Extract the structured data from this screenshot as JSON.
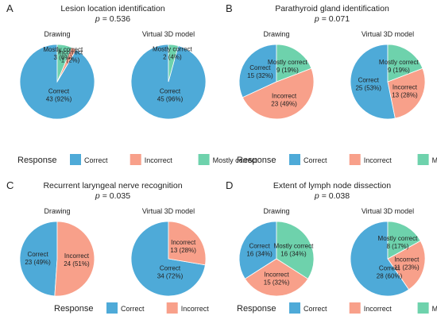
{
  "colors": {
    "Correct": "#4eaad8",
    "Incorrect": "#f8a08a",
    "Mostly correct": "#6ed2ac"
  },
  "legend_title": "Response",
  "chart_data": [
    {
      "type": "pie",
      "panel_label": "A",
      "title": "Lesion location identification",
      "p_prefix": "p",
      "p_value": "= 0.536",
      "legend": [
        "Correct",
        "Incorrect",
        "Mostly correct"
      ],
      "pies": [
        {
          "label": "Drawing",
          "slices": [
            {
              "category": "Correct",
              "value": 43,
              "text_line1": "Correct",
              "text_line2": "43 (92%)"
            },
            {
              "category": "Incorrect",
              "value": 1,
              "text_line1": "Incorrect",
              "text_line2": "1 (2%)"
            },
            {
              "category": "Mostly correct",
              "value": 3,
              "text_line1": "Mostly correct",
              "text_line2": "3 (6%)"
            }
          ]
        },
        {
          "label": "Virtual 3D model",
          "slices": [
            {
              "category": "Correct",
              "value": 45,
              "text_line1": "Correct",
              "text_line2": "45 (96%)"
            },
            {
              "category": "Mostly correct",
              "value": 2,
              "text_line1": "Mostly correct",
              "text_line2": "2 (4%)"
            }
          ]
        }
      ]
    },
    {
      "type": "pie",
      "panel_label": "B",
      "title": "Parathyroid gland identification",
      "p_prefix": "p",
      "p_value": "= 0.071",
      "legend": [
        "Correct",
        "Incorrect",
        "Mostly correct"
      ],
      "pies": [
        {
          "label": "Drawing",
          "slices": [
            {
              "category": "Correct",
              "value": 15,
              "text_line1": "Correct",
              "text_line2": "15 (32%)"
            },
            {
              "category": "Incorrect",
              "value": 23,
              "text_line1": "Incorrect",
              "text_line2": "23 (49%)"
            },
            {
              "category": "Mostly correct",
              "value": 9,
              "text_line1": "Mostly correct",
              "text_line2": "9 (19%)"
            }
          ]
        },
        {
          "label": "Virtual 3D model",
          "slices": [
            {
              "category": "Correct",
              "value": 25,
              "text_line1": "Correct",
              "text_line2": "25 (53%)"
            },
            {
              "category": "Incorrect",
              "value": 13,
              "text_line1": "Incorrect",
              "text_line2": "13 (28%)"
            },
            {
              "category": "Mostly correct",
              "value": 9,
              "text_line1": "Mostly correct",
              "text_line2": "9 (19%)"
            }
          ]
        }
      ]
    },
    {
      "type": "pie",
      "panel_label": "C",
      "title": "Recurrent laryngeal nerve recognition",
      "p_prefix": "p",
      "p_value": "= 0.035",
      "legend": [
        "Correct",
        "Incorrect"
      ],
      "pies": [
        {
          "label": "Drawing",
          "slices": [
            {
              "category": "Correct",
              "value": 23,
              "text_line1": "Correct",
              "text_line2": "23 (49%)"
            },
            {
              "category": "Incorrect",
              "value": 24,
              "text_line1": "Incorrect",
              "text_line2": "24 (51%)"
            }
          ]
        },
        {
          "label": "Virtual 3D model",
          "slices": [
            {
              "category": "Correct",
              "value": 34,
              "text_line1": "Correct",
              "text_line2": "34 (72%)"
            },
            {
              "category": "Incorrect",
              "value": 13,
              "text_line1": "Incorrect",
              "text_line2": "13 (28%)"
            }
          ]
        }
      ]
    },
    {
      "type": "pie",
      "panel_label": "D",
      "title": "Extent of lymph node dissection",
      "p_prefix": "p",
      "p_value": "= 0.038",
      "legend": [
        "Correct",
        "Incorrect",
        "Mostly correct"
      ],
      "pies": [
        {
          "label": "Drawing",
          "slices": [
            {
              "category": "Correct",
              "value": 16,
              "text_line1": "Correct",
              "text_line2": "16 (34%)"
            },
            {
              "category": "Incorrect",
              "value": 15,
              "text_line1": "Incorrect",
              "text_line2": "15 (32%)"
            },
            {
              "category": "Mostly correct",
              "value": 16,
              "text_line1": "Mostly correct",
              "text_line2": "16 (34%)"
            }
          ]
        },
        {
          "label": "Virtual 3D model",
          "slices": [
            {
              "category": "Correct",
              "value": 28,
              "text_line1": "Correct",
              "text_line2": "28 (60%)"
            },
            {
              "category": "Incorrect",
              "value": 11,
              "text_line1": "Incorrect",
              "text_line2": "11 (23%)"
            },
            {
              "category": "Mostly correct",
              "value": 8,
              "text_line1": "Mostly correct",
              "text_line2": "8 (17%)"
            }
          ]
        }
      ]
    }
  ]
}
